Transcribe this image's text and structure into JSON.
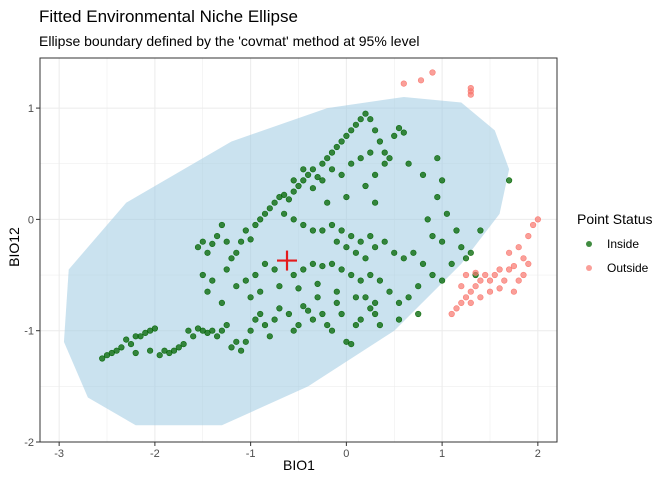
{
  "chart_data": {
    "type": "scatter",
    "title": "Fitted Environmental Niche Ellipse",
    "subtitle": "Ellipse boundary defined by the 'covmat' method at 95% level",
    "xlabel": "BIO1",
    "ylabel": "BIO12",
    "xlim": [
      -3.2,
      2.2
    ],
    "ylim": [
      -2.0,
      1.45
    ],
    "x_ticks": [
      -3,
      -2,
      -1,
      0,
      1,
      2
    ],
    "y_ticks": [
      -2,
      -1,
      0,
      1
    ],
    "grid": true,
    "legend_position": "right",
    "legend_title": "Point Status",
    "colors": {
      "inside": "#006400",
      "outside": "#f8766d",
      "ellipse_fill": "#9ecae1",
      "centroid": "#e41a1c",
      "panel_border": "#333333",
      "grid": "#ebebeb"
    },
    "ellipse": {
      "center": [
        -0.6,
        -0.35
      ],
      "polygon": [
        [
          1.7,
          0.45
        ],
        [
          1.55,
          0.8
        ],
        [
          1.2,
          1.05
        ],
        [
          0.6,
          1.1
        ],
        [
          -0.2,
          1.0
        ],
        [
          -1.2,
          0.7
        ],
        [
          -2.3,
          0.15
        ],
        [
          -2.9,
          -0.45
        ],
        [
          -2.95,
          -1.1
        ],
        [
          -2.7,
          -1.6
        ],
        [
          -2.2,
          -1.85
        ],
        [
          -1.3,
          -1.85
        ],
        [
          -0.4,
          -1.5
        ],
        [
          0.5,
          -1.0
        ],
        [
          1.2,
          -0.4
        ],
        [
          1.6,
          0.05
        ]
      ]
    },
    "centroid": [
      -0.62,
      -0.37
    ],
    "series": [
      {
        "name": "Inside",
        "points": [
          [
            -2.55,
            -1.25
          ],
          [
            -2.5,
            -1.22
          ],
          [
            -2.45,
            -1.2
          ],
          [
            -2.4,
            -1.18
          ],
          [
            -2.35,
            -1.15
          ],
          [
            -2.3,
            -1.08
          ],
          [
            -2.25,
            -1.12
          ],
          [
            -2.2,
            -1.05
          ],
          [
            -2.15,
            -1.05
          ],
          [
            -2.1,
            -1.02
          ],
          [
            -2.05,
            -1.0
          ],
          [
            -2.0,
            -0.98
          ],
          [
            -2.2,
            -1.2
          ],
          [
            -2.05,
            -1.18
          ],
          [
            -1.95,
            -1.22
          ],
          [
            -1.9,
            -1.18
          ],
          [
            -1.85,
            -1.2
          ],
          [
            -1.8,
            -1.18
          ],
          [
            -1.75,
            -1.15
          ],
          [
            -1.7,
            -1.12
          ],
          [
            -1.65,
            -1.0
          ],
          [
            -1.6,
            -1.05
          ],
          [
            -1.55,
            -0.98
          ],
          [
            -1.5,
            -1.0
          ],
          [
            -1.45,
            -1.02
          ],
          [
            -1.4,
            -1.0
          ],
          [
            -1.35,
            -1.05
          ],
          [
            -1.3,
            -1.0
          ],
          [
            -1.25,
            -0.95
          ],
          [
            -1.2,
            -1.15
          ],
          [
            -1.15,
            -1.1
          ],
          [
            -1.1,
            -1.18
          ],
          [
            -1.05,
            -1.1
          ],
          [
            -1.0,
            -1.0
          ],
          [
            -0.95,
            -0.9
          ],
          [
            -0.9,
            -0.85
          ],
          [
            -0.85,
            -0.95
          ],
          [
            -0.8,
            -1.05
          ],
          [
            -0.75,
            -0.9
          ],
          [
            -0.7,
            -0.8
          ],
          [
            -0.6,
            -0.85
          ],
          [
            -0.55,
            -1.0
          ],
          [
            -0.5,
            -0.95
          ],
          [
            -0.45,
            -0.78
          ],
          [
            -0.4,
            -0.82
          ],
          [
            -0.35,
            -0.9
          ],
          [
            -0.3,
            -0.7
          ],
          [
            -0.25,
            -0.85
          ],
          [
            -0.2,
            -0.95
          ],
          [
            -0.15,
            -1.0
          ],
          [
            -0.1,
            -0.75
          ],
          [
            -0.05,
            -0.85
          ],
          [
            0.0,
            -1.1
          ],
          [
            0.05,
            -1.12
          ],
          [
            0.1,
            -0.95
          ],
          [
            0.15,
            -0.9
          ],
          [
            0.2,
            -0.7
          ],
          [
            0.25,
            -0.8
          ],
          [
            0.3,
            -0.85
          ],
          [
            0.35,
            -0.95
          ],
          [
            -1.55,
            -0.25
          ],
          [
            -1.5,
            -0.2
          ],
          [
            -1.45,
            -0.3
          ],
          [
            -1.4,
            -0.22
          ],
          [
            -1.35,
            -0.15
          ],
          [
            -1.3,
            -0.05
          ],
          [
            -1.25,
            -0.2
          ],
          [
            -1.2,
            -0.35
          ],
          [
            -1.15,
            -0.3
          ],
          [
            -1.1,
            -0.2
          ],
          [
            -1.05,
            -0.1
          ],
          [
            -1.0,
            -0.18
          ],
          [
            -0.95,
            -0.05
          ],
          [
            -0.9,
            0.0
          ],
          [
            -0.85,
            0.05
          ],
          [
            -0.8,
            0.1
          ],
          [
            -0.75,
            0.15
          ],
          [
            -0.7,
            0.2
          ],
          [
            -0.65,
            0.22
          ],
          [
            -0.6,
            0.18
          ],
          [
            -0.55,
            0.25
          ],
          [
            -0.5,
            0.3
          ],
          [
            -0.45,
            0.35
          ],
          [
            -0.4,
            0.4
          ],
          [
            -0.35,
            0.45
          ],
          [
            -0.3,
            0.38
          ],
          [
            -0.25,
            0.5
          ],
          [
            -0.2,
            0.55
          ],
          [
            -0.15,
            0.6
          ],
          [
            -0.1,
            0.65
          ],
          [
            -0.05,
            0.7
          ],
          [
            0.0,
            0.75
          ],
          [
            0.05,
            0.8
          ],
          [
            0.1,
            0.85
          ],
          [
            0.15,
            0.9
          ],
          [
            0.2,
            0.95
          ],
          [
            0.25,
            0.9
          ],
          [
            0.3,
            0.8
          ],
          [
            0.35,
            0.7
          ],
          [
            0.4,
            0.6
          ],
          [
            0.45,
            0.55
          ],
          [
            0.5,
            0.75
          ],
          [
            0.55,
            0.82
          ],
          [
            0.6,
            0.78
          ],
          [
            0.65,
            0.5
          ],
          [
            -0.55,
            0.35
          ],
          [
            -0.45,
            0.45
          ],
          [
            -0.35,
            0.28
          ],
          [
            -0.25,
            0.35
          ],
          [
            -0.15,
            0.45
          ],
          [
            -0.05,
            0.4
          ],
          [
            0.05,
            0.5
          ],
          [
            0.15,
            0.55
          ],
          [
            0.25,
            0.6
          ],
          [
            -0.65,
            0.05
          ],
          [
            -0.55,
            0.0
          ],
          [
            -0.45,
            -0.05
          ],
          [
            -0.35,
            -0.1
          ],
          [
            -0.25,
            -0.1
          ],
          [
            -0.15,
            -0.05
          ],
          [
            -0.05,
            -0.1
          ],
          [
            0.05,
            -0.15
          ],
          [
            0.15,
            -0.2
          ],
          [
            0.25,
            -0.15
          ],
          [
            -0.1,
            -0.2
          ],
          [
            0.0,
            -0.25
          ],
          [
            0.1,
            -0.3
          ],
          [
            0.2,
            -0.35
          ],
          [
            0.3,
            -0.25
          ],
          [
            0.4,
            -0.2
          ],
          [
            0.5,
            -0.3
          ],
          [
            0.6,
            -0.35
          ],
          [
            0.7,
            -0.3
          ],
          [
            0.8,
            -0.4
          ],
          [
            0.9,
            -0.15
          ],
          [
            1.0,
            -0.2
          ],
          [
            0.85,
            0.0
          ],
          [
            0.95,
            0.2
          ],
          [
            1.05,
            0.05
          ],
          [
            1.15,
            -0.1
          ],
          [
            1.2,
            -0.25
          ],
          [
            1.1,
            -0.4
          ],
          [
            1.0,
            -0.55
          ],
          [
            0.9,
            -0.5
          ],
          [
            0.75,
            -0.6
          ],
          [
            0.65,
            -0.7
          ],
          [
            0.55,
            -0.75
          ],
          [
            0.45,
            -0.65
          ],
          [
            0.35,
            -0.55
          ],
          [
            0.25,
            -0.5
          ],
          [
            0.15,
            -0.55
          ],
          [
            0.05,
            -0.5
          ],
          [
            -0.05,
            -0.45
          ],
          [
            -0.15,
            -0.4
          ],
          [
            -0.25,
            -0.42
          ],
          [
            -0.35,
            -0.4
          ],
          [
            -0.45,
            -0.45
          ],
          [
            -0.55,
            -0.5
          ],
          [
            -0.75,
            -0.45
          ],
          [
            -0.85,
            -0.4
          ],
          [
            -0.95,
            -0.5
          ],
          [
            -1.05,
            -0.55
          ],
          [
            -1.15,
            -0.6
          ],
          [
            -1.25,
            -0.45
          ],
          [
            -1.4,
            -0.55
          ],
          [
            -1.5,
            -0.5
          ],
          [
            -1.45,
            -0.65
          ],
          [
            -1.3,
            -0.75
          ],
          [
            -1.0,
            -0.7
          ],
          [
            -0.9,
            -0.65
          ],
          [
            -0.7,
            -0.6
          ],
          [
            -0.5,
            -0.62
          ],
          [
            -0.3,
            -0.58
          ],
          [
            -0.1,
            -0.65
          ],
          [
            0.1,
            -0.7
          ],
          [
            0.3,
            -0.75
          ],
          [
            0.55,
            -0.9
          ],
          [
            0.75,
            -0.85
          ],
          [
            1.3,
            -0.3
          ],
          [
            1.4,
            -0.1
          ],
          [
            1.25,
            -0.35
          ],
          [
            1.35,
            -0.5
          ],
          [
            1.7,
            0.35
          ],
          [
            0.2,
            0.3
          ],
          [
            0.3,
            0.15
          ],
          [
            0.0,
            0.2
          ],
          [
            -0.2,
            0.15
          ],
          [
            1.0,
            0.35
          ],
          [
            0.95,
            0.55
          ],
          [
            0.3,
            0.4
          ],
          [
            0.4,
            0.5
          ],
          [
            0.8,
            0.4
          ]
        ]
      },
      {
        "name": "Outside",
        "points": [
          [
            0.6,
            1.22
          ],
          [
            0.78,
            1.25
          ],
          [
            0.9,
            1.32
          ],
          [
            1.3,
            1.18
          ],
          [
            1.3,
            1.15
          ],
          [
            1.3,
            1.12
          ],
          [
            1.95,
            -0.05
          ],
          [
            2.0,
            0.0
          ],
          [
            1.9,
            -0.15
          ],
          [
            1.8,
            -0.25
          ],
          [
            1.85,
            -0.35
          ],
          [
            1.7,
            -0.3
          ],
          [
            1.75,
            -0.42
          ],
          [
            1.6,
            -0.45
          ],
          [
            1.55,
            -0.5
          ],
          [
            1.5,
            -0.55
          ],
          [
            1.45,
            -0.5
          ],
          [
            1.4,
            -0.55
          ],
          [
            1.35,
            -0.6
          ],
          [
            1.3,
            -0.65
          ],
          [
            1.25,
            -0.7
          ],
          [
            1.2,
            -0.75
          ],
          [
            1.15,
            -0.8
          ],
          [
            1.1,
            -0.85
          ],
          [
            1.65,
            -0.55
          ],
          [
            1.5,
            -0.65
          ],
          [
            1.4,
            -0.7
          ],
          [
            1.3,
            -0.75
          ],
          [
            1.85,
            -0.5
          ],
          [
            1.9,
            -0.4
          ],
          [
            1.7,
            -0.45
          ],
          [
            1.6,
            -0.62
          ],
          [
            1.2,
            -0.6
          ],
          [
            1.25,
            -0.5
          ],
          [
            1.35,
            -0.48
          ],
          [
            1.8,
            -0.55
          ],
          [
            1.75,
            -0.65
          ]
        ]
      }
    ]
  }
}
